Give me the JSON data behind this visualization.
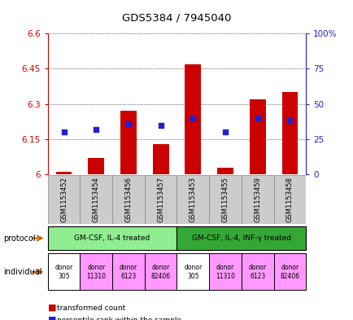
{
  "title": "GDS5384 / 7945040",
  "samples": [
    "GSM1153452",
    "GSM1153454",
    "GSM1153456",
    "GSM1153457",
    "GSM1153453",
    "GSM1153455",
    "GSM1153459",
    "GSM1153458"
  ],
  "red_values": [
    6.01,
    6.07,
    6.27,
    6.13,
    6.47,
    6.03,
    6.32,
    6.35
  ],
  "blue_pct": [
    30,
    32,
    36,
    35,
    40,
    30,
    40,
    38
  ],
  "ylim": [
    6.0,
    6.6
  ],
  "yticks": [
    6.0,
    6.15,
    6.3,
    6.45,
    6.6
  ],
  "ytick_labels": [
    "6",
    "6.15",
    "6.3",
    "6.45",
    "6.6"
  ],
  "y2ticks": [
    0,
    25,
    50,
    75,
    100
  ],
  "y2tick_labels": [
    "0",
    "25",
    "50",
    "75",
    "100%"
  ],
  "protocol_groups": [
    {
      "label": "GM-CSF, IL-4 treated",
      "start": 0,
      "end": 3,
      "color": "#90ee90"
    },
    {
      "label": "GM-CSF, IL-4, INF-γ treated",
      "start": 4,
      "end": 7,
      "color": "#34a834"
    }
  ],
  "indiv_colors": [
    "#ffffff",
    "#ff99ff",
    "#ff99ff",
    "#ff99ff",
    "#ffffff",
    "#ff99ff",
    "#ff99ff",
    "#ff99ff"
  ],
  "indiv_labels": [
    "donor\n305",
    "donor\n11310",
    "donor\n6123",
    "donor\n82406",
    "donor\n305",
    "donor\n11310",
    "donor\n6123",
    "donor\n82406"
  ],
  "bar_color": "#cc0000",
  "dot_color": "#2222cc",
  "bar_width": 0.5,
  "dot_size": 25,
  "legend_red": "transformed count",
  "legend_blue": "percentile rank within the sample",
  "label_arrow_color": "#cc6600",
  "yaxis_color": "#cc0000",
  "y2axis_color": "#2222cc",
  "sample_bg": "#cccccc"
}
